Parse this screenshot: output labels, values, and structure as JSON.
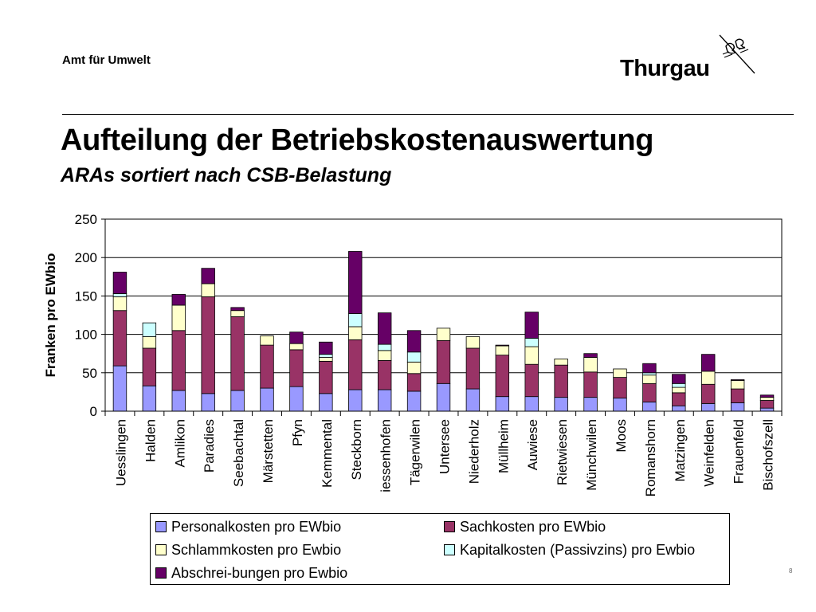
{
  "header": {
    "department": "Amt für Umwelt",
    "logo_text": "Thurgau",
    "page_number": "8"
  },
  "title": "Aufteilung der Betriebskostenauswertung",
  "subtitle": "ARAs sortiert nach CSB-Belastung",
  "chart_data": {
    "type": "bar",
    "stacked": true,
    "ylabel": "Franken pro EWbio",
    "ylim": [
      0,
      250
    ],
    "yticks": [
      0,
      50,
      100,
      150,
      200,
      250
    ],
    "grid": true,
    "legend_position": "bottom",
    "categories": [
      "Uesslingen",
      "Halden",
      "Amlikon",
      "Paradies",
      "Seebachtal",
      "Märstetten",
      "Pfyn",
      "Kemmental",
      "Steckborn",
      "iessenhofen",
      "Tägerwilen",
      "Untersee",
      "Niederholz",
      "Müllheim",
      "Auwiese",
      "Rietwiesen",
      "Münchwilen",
      "Moos",
      "Romanshorn",
      "Matzingen",
      "Weinfelden",
      "Frauenfeld",
      "Bischofszell"
    ],
    "series": [
      {
        "name": "Personalkosten pro EWbio",
        "color": "#9999ff",
        "values": [
          59,
          33,
          27,
          23,
          27,
          30,
          32,
          23,
          28,
          28,
          26,
          36,
          29,
          19,
          19,
          18,
          18,
          17,
          12,
          7,
          10,
          11,
          4
        ]
      },
      {
        "name": "Sachkosten pro EWbio",
        "color": "#993366",
        "values": [
          72,
          49,
          78,
          126,
          96,
          56,
          48,
          42,
          65,
          38,
          23,
          56,
          53,
          54,
          42,
          42,
          33,
          27,
          24,
          17,
          25,
          18,
          10
        ]
      },
      {
        "name": "Schlammkosten pro Ewbio",
        "color": "#ffffcc",
        "values": [
          18,
          15,
          33,
          17,
          8,
          12,
          8,
          5,
          17,
          13,
          15,
          16,
          15,
          12,
          23,
          8,
          19,
          11,
          11,
          7,
          17,
          11,
          4
        ]
      },
      {
        "name": "Kapitalkosten (Passivzins) pro Ewbio",
        "color": "#ccffff",
        "values": [
          4,
          18,
          0,
          0,
          0,
          0,
          0,
          4,
          17,
          8,
          13,
          0,
          0,
          0,
          11,
          0,
          0,
          0,
          3,
          5,
          0,
          0,
          0
        ]
      },
      {
        "name": "Abschrei-bungen  pro Ewbio",
        "color": "#660066",
        "values": [
          28,
          0,
          14,
          20,
          4,
          0,
          15,
          16,
          81,
          41,
          28,
          0,
          0,
          1,
          34,
          0,
          5,
          0,
          12,
          12,
          22,
          1,
          3
        ]
      }
    ]
  }
}
